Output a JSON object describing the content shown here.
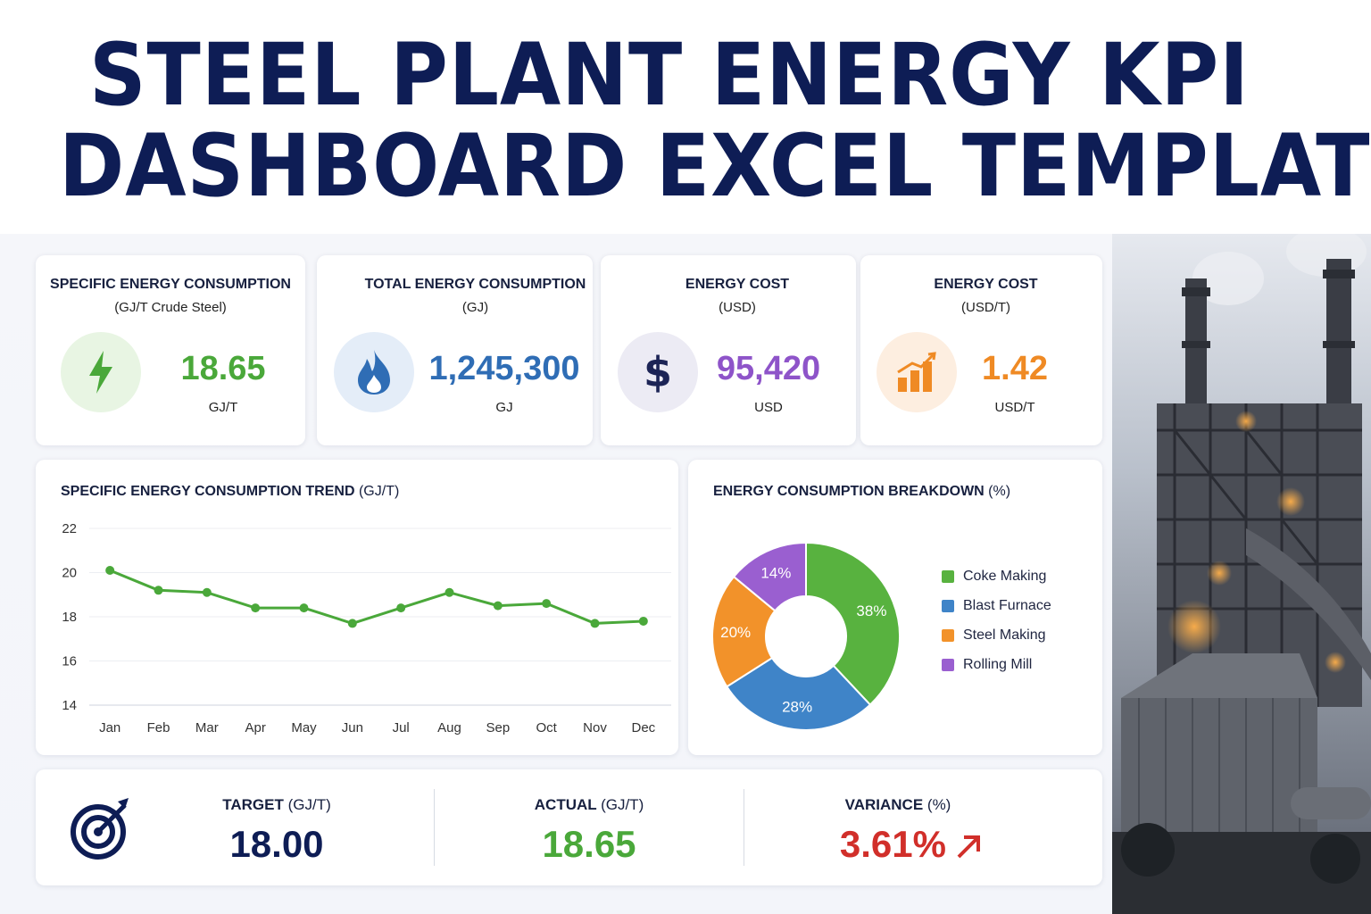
{
  "title": {
    "line1": "STEEL PLANT ENERGY KPI",
    "line2": "DASHBOARD EXCEL TEMPLATE"
  },
  "kpis": [
    {
      "title": "SPECIFIC ENERGY CONSUMPTION",
      "subtitle": "(GJ/T Crude Steel)",
      "value": "18.65",
      "unit": "GJ/T",
      "icon": "lightning-bolt-icon",
      "color": "#4aa83a",
      "bg": "#e8f5e3"
    },
    {
      "title": "TOTAL ENERGY CONSUMPTION",
      "subtitle": "(GJ)",
      "value": "1,245,300",
      "unit": "GJ",
      "icon": "flame-icon",
      "color": "#2f6db5",
      "bg": "#e4edf8"
    },
    {
      "title": "ENERGY COST",
      "subtitle": "(USD)",
      "value": "95,420",
      "unit": "USD",
      "icon": "dollar-icon",
      "color": "#8e54c9",
      "bg": "#ecebf4"
    },
    {
      "title": "ENERGY COST",
      "subtitle": "(USD/T)",
      "value": "1.42",
      "unit": "USD/T",
      "icon": "bar-chart-icon",
      "color": "#ef8a24",
      "bg": "#fdeee0"
    }
  ],
  "chart_data": [
    {
      "type": "line",
      "title": "SPECIFIC ENERGY CONSUMPTION TREND",
      "title_unit": "(GJ/T)",
      "categories": [
        "Jan",
        "Feb",
        "Mar",
        "Apr",
        "May",
        "Jun",
        "Jul",
        "Aug",
        "Sep",
        "Oct",
        "Nov",
        "Dec"
      ],
      "values": [
        20.1,
        19.2,
        19.1,
        18.4,
        18.4,
        17.7,
        18.4,
        19.1,
        18.5,
        18.6,
        17.7,
        17.8
      ],
      "ylim": [
        14,
        22
      ],
      "yticks": [
        "14",
        "16",
        "18",
        "20",
        "22"
      ],
      "grid": true,
      "color": "#4aa83a"
    },
    {
      "type": "pie",
      "title": "ENERGY CONSUMPTION BREAKDOWN",
      "title_unit": "(%)",
      "categories": [
        "Coke Making",
        "Blast Furnace",
        "Steel Making",
        "Rolling Mill"
      ],
      "values": [
        38,
        28,
        20,
        14
      ],
      "labels": [
        "38%",
        "28%",
        "20%",
        "14%"
      ],
      "colors": [
        "#58b23f",
        "#3f84c8",
        "#f2922a",
        "#9a5fd0"
      ],
      "donut": true,
      "legend": "right"
    }
  ],
  "summary": {
    "target_label": "TARGET",
    "target_unit": "(GJ/T)",
    "target_value": "18.00",
    "actual_label": "ACTUAL",
    "actual_unit": "(GJ/T)",
    "actual_value": "18.65",
    "variance_label": "VARIANCE",
    "variance_unit": "(%)",
    "variance_value": "3.61%",
    "colors": {
      "target": "#0e1d55",
      "actual": "#4aa83a",
      "variance": "#d12f2a"
    }
  }
}
